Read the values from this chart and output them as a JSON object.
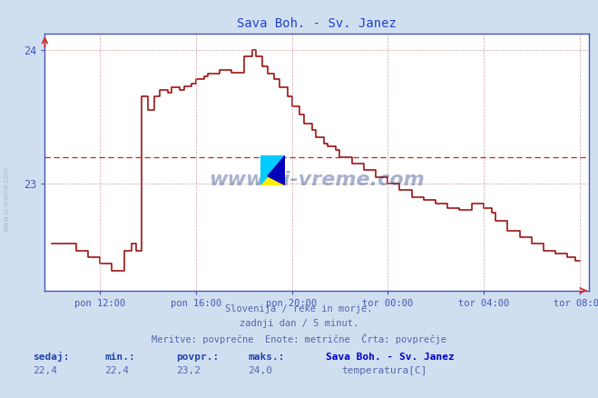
{
  "title": "Sava Boh. - Sv. Janez",
  "title_color": "#2244cc",
  "bg_color": "#d0dff0",
  "plot_bg_color": "#ffffff",
  "line_color": "#990000",
  "avg_line_color": "#cc2222",
  "avg_value": 23.2,
  "ymin": 22.2,
  "ymax": 24.12,
  "yticks": [
    23,
    24
  ],
  "grid_color": "#cc9999",
  "tick_color": "#4455bb",
  "footer_color": "#5566aa",
  "footer_lines": [
    "Slovenija / reke in morje.",
    "zadnji dan / 5 minut.",
    "Meritve: povprečne  Enote: metrične  Črta: povprečje"
  ],
  "stats_labels": [
    "sedaj:",
    "min.:",
    "povpr.:",
    "maks.:"
  ],
  "stats_values": [
    "22,4",
    "22,4",
    "23,2",
    "24,0"
  ],
  "legend_title": "Sava Boh. - Sv. Janez",
  "legend_label": "temperatura[C]",
  "legend_color": "#cc0000",
  "xtick_labels": [
    "pon 12:00",
    "pon 16:00",
    "pon 20:00",
    "tor 00:00",
    "tor 04:00",
    "tor 08:00"
  ],
  "xmin": 0.0,
  "xmax": 22.0,
  "xtick_positions": [
    2.0,
    6.0,
    10.0,
    14.0,
    18.0,
    22.0
  ]
}
